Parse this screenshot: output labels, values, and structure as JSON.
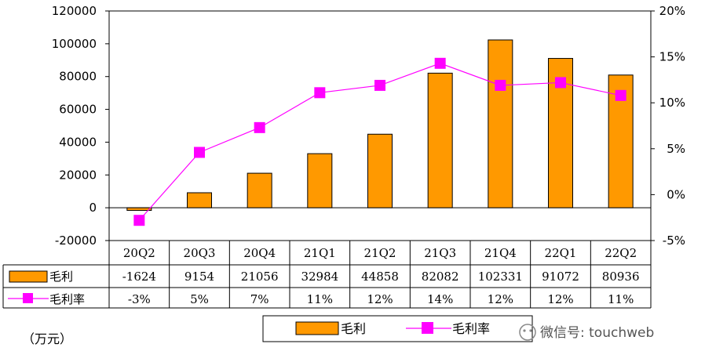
{
  "chart_data": {
    "type": "bar+line",
    "categories": [
      "20Q2",
      "20Q3",
      "20Q4",
      "21Q1",
      "21Q2",
      "21Q3",
      "21Q4",
      "22Q1",
      "22Q2"
    ],
    "series": [
      {
        "name": "毛利",
        "kind": "bar",
        "axis": "left",
        "color": "#FF9900",
        "values": [
          -1624,
          9154,
          21056,
          32984,
          44858,
          82082,
          102331,
          91072,
          80936
        ]
      },
      {
        "name": "毛利率",
        "kind": "line",
        "axis": "right",
        "color": "#FF00FF",
        "values": [
          -2.8,
          4.6,
          7.3,
          11.1,
          11.9,
          14.3,
          11.9,
          12.2,
          10.8
        ],
        "labels": [
          "-3%",
          "5%",
          "7%",
          "11%",
          "12%",
          "14%",
          "12%",
          "12%",
          "11%"
        ]
      }
    ],
    "y_left": {
      "ylim": [
        -20000,
        120000
      ],
      "ticks": [
        "-20000",
        "0",
        "20000",
        "40000",
        "60000",
        "80000",
        "100000",
        "120000"
      ]
    },
    "y_right": {
      "ylim": [
        -5,
        20
      ],
      "ticks": [
        "-5%",
        "0%",
        "5%",
        "10%",
        "15%",
        "20%"
      ]
    },
    "table_values_gross_profit": [
      "-1624",
      "9154",
      "21056",
      "32984",
      "44858",
      "82082",
      "102331",
      "91072",
      "80936"
    ],
    "unit_label": "（万元）",
    "legend": [
      "毛利",
      "毛利率"
    ],
    "legend_position": "bottom",
    "grid": false
  },
  "watermark": "微信号: touchweb"
}
